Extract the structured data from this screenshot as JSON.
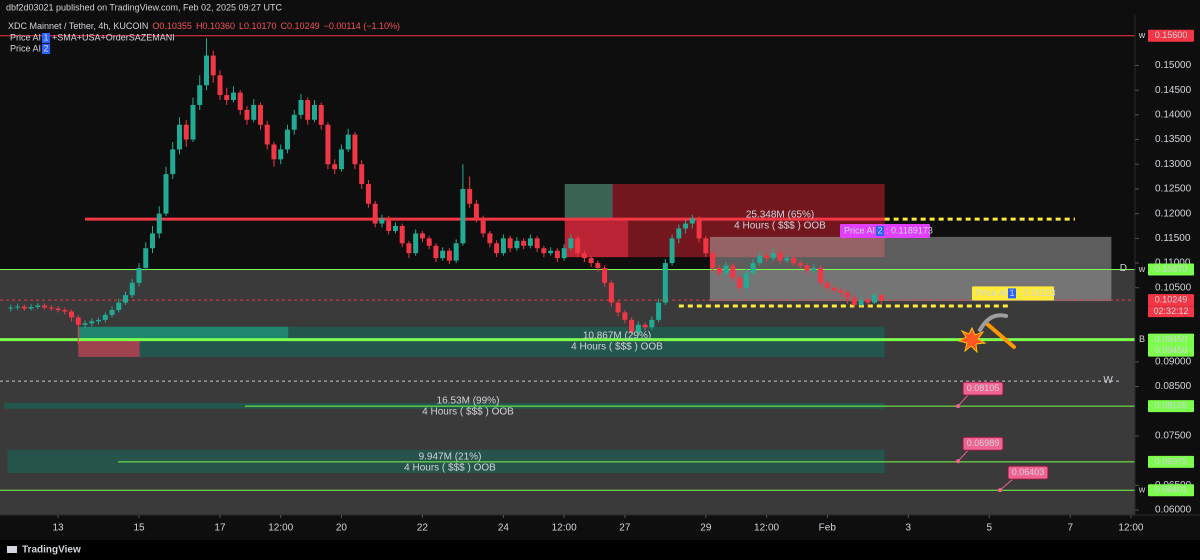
{
  "header": {
    "publisher": "dbf2d03021 published on TradingView.com, Feb 02, 2025 09:27 UTC",
    "symbol": "XDC Mainnet / Tether, 4h, KUCOIN",
    "quote": [
      "O0.10355",
      "H0.10360",
      "L0.10170",
      "C0.10249",
      "−0.00114 (−1.10%)"
    ],
    "indicators": [
      {
        "name": "Price AI",
        "badge": "1",
        "text": "+SMA+USA+OrderSAZEMANI"
      },
      {
        "name": "Price AI",
        "badge": "2"
      }
    ]
  },
  "footer": "TradingView",
  "chart_data": {
    "type": "candlestick",
    "up_color": "#22ab94",
    "down_color": "#f23645",
    "xlim": [
      -8.6,
      159.6
    ],
    "ylim": [
      0.059,
      0.1592
    ],
    "xticks": [
      {
        "value": 0,
        "label": "13"
      },
      {
        "value": 12,
        "label": "15"
      },
      {
        "value": 24,
        "label": "17"
      },
      {
        "value": 33,
        "label": "12:00"
      },
      {
        "value": 42,
        "label": "20"
      },
      {
        "value": 54,
        "label": "22"
      },
      {
        "value": 66,
        "label": "24"
      },
      {
        "value": 75,
        "label": "12:00"
      },
      {
        "value": 84,
        "label": "27"
      },
      {
        "value": 96,
        "label": "29"
      },
      {
        "value": 105,
        "label": "12:00"
      },
      {
        "value": 114,
        "label": "Feb"
      },
      {
        "value": 126,
        "label": "3"
      },
      {
        "value": 138,
        "label": "5"
      },
      {
        "value": 150,
        "label": "7"
      },
      {
        "value": 159,
        "label": "12:00"
      }
    ],
    "yticks": [
      {
        "value": 0.15,
        "label": "0.15000"
      },
      {
        "value": 0.145,
        "label": "0.14500"
      },
      {
        "value": 0.14,
        "label": "0.14000"
      },
      {
        "value": 0.135,
        "label": "0.13500"
      },
      {
        "value": 0.13,
        "label": "0.13000"
      },
      {
        "value": 0.125,
        "label": "0.12500"
      },
      {
        "value": 0.12,
        "label": "0.12000"
      },
      {
        "value": 0.115,
        "label": "0.11500"
      },
      {
        "value": 0.11,
        "label": "0.11000"
      },
      {
        "value": 0.105,
        "label": "0.10500"
      },
      {
        "value": 0.09,
        "label": "0.09000"
      },
      {
        "value": 0.085,
        "label": "0.08500"
      },
      {
        "value": 0.075,
        "label": "0.07500"
      },
      {
        "value": 0.065,
        "label": "0.06500"
      },
      {
        "value": 0.06,
        "label": "0.06000"
      }
    ],
    "x": [
      -7,
      -6,
      -5,
      -4,
      -3,
      -2,
      -1,
      0,
      1,
      2,
      3,
      4,
      5,
      6,
      7,
      8,
      9,
      10,
      11,
      12,
      13,
      14,
      15,
      16,
      17,
      18,
      19,
      20,
      21,
      22,
      23,
      24,
      25,
      26,
      27,
      28,
      29,
      30,
      31,
      32,
      33,
      34,
      35,
      36,
      37,
      38,
      39,
      40,
      41,
      42,
      43,
      44,
      45,
      46,
      47,
      48,
      49,
      50,
      51,
      52,
      53,
      54,
      55,
      56,
      57,
      58,
      59,
      60,
      61,
      62,
      63,
      64,
      65,
      66,
      67,
      68,
      69,
      70,
      71,
      72,
      73,
      74,
      75,
      76,
      77,
      78,
      79,
      80,
      81,
      82,
      83,
      84,
      85,
      86,
      87,
      88,
      89,
      90,
      91,
      92,
      93,
      94,
      95,
      96,
      97,
      98,
      99,
      100,
      101,
      102,
      103,
      104,
      105,
      106,
      107,
      108,
      109,
      110,
      111,
      112,
      113,
      114,
      115,
      116,
      117,
      118,
      119,
      120,
      121,
      122
    ],
    "candles": [
      [
        0.1008,
        0.1016,
        0.1002,
        0.101
      ],
      [
        0.101,
        0.1018,
        0.1005,
        0.1012
      ],
      [
        0.1012,
        0.1016,
        0.1003,
        0.1008
      ],
      [
        0.1008,
        0.1017,
        0.1004,
        0.1011
      ],
      [
        0.1011,
        0.1019,
        0.1007,
        0.1014
      ],
      [
        0.1014,
        0.1018,
        0.1006,
        0.101
      ],
      [
        0.101,
        0.1015,
        0.1003,
        0.1008
      ],
      [
        0.1008,
        0.1013,
        0.1,
        0.1005
      ],
      [
        0.1005,
        0.101,
        0.0996,
        0.1002
      ],
      [
        0.1002,
        0.1006,
        0.0982,
        0.099
      ],
      [
        0.099,
        0.0995,
        0.0935,
        0.0975
      ],
      [
        0.0975,
        0.0984,
        0.0968,
        0.0978
      ],
      [
        0.0978,
        0.0988,
        0.0972,
        0.0982
      ],
      [
        0.0982,
        0.099,
        0.0976,
        0.0985
      ],
      [
        0.0985,
        0.1,
        0.098,
        0.0995
      ],
      [
        0.0995,
        0.1012,
        0.099,
        0.1005
      ],
      [
        0.1005,
        0.1028,
        0.1,
        0.102
      ],
      [
        0.102,
        0.1042,
        0.1015,
        0.1035
      ],
      [
        0.1035,
        0.1068,
        0.103,
        0.106
      ],
      [
        0.106,
        0.11,
        0.1052,
        0.109
      ],
      [
        0.109,
        0.1142,
        0.1085,
        0.113
      ],
      [
        0.113,
        0.1175,
        0.112,
        0.116
      ],
      [
        0.116,
        0.1215,
        0.115,
        0.12
      ],
      [
        0.12,
        0.1295,
        0.1195,
        0.128
      ],
      [
        0.128,
        0.1345,
        0.127,
        0.133
      ],
      [
        0.133,
        0.1395,
        0.132,
        0.138
      ],
      [
        0.138,
        0.139,
        0.1335,
        0.135
      ],
      [
        0.135,
        0.1435,
        0.1345,
        0.142
      ],
      [
        0.142,
        0.148,
        0.141,
        0.146
      ],
      [
        0.146,
        0.1555,
        0.145,
        0.152
      ],
      [
        0.152,
        0.153,
        0.1465,
        0.148
      ],
      [
        0.148,
        0.149,
        0.143,
        0.144
      ],
      [
        0.144,
        0.1455,
        0.142,
        0.143
      ],
      [
        0.143,
        0.1458,
        0.1425,
        0.1445
      ],
      [
        0.1445,
        0.145,
        0.14,
        0.141
      ],
      [
        0.141,
        0.1418,
        0.138,
        0.139
      ],
      [
        0.139,
        0.1432,
        0.1385,
        0.142
      ],
      [
        0.142,
        0.1425,
        0.137,
        0.138
      ],
      [
        0.138,
        0.1388,
        0.133,
        0.134
      ],
      [
        0.134,
        0.1345,
        0.1295,
        0.131
      ],
      [
        0.131,
        0.134,
        0.13,
        0.133
      ],
      [
        0.133,
        0.138,
        0.1322,
        0.137
      ],
      [
        0.137,
        0.141,
        0.136,
        0.14
      ],
      [
        0.14,
        0.1442,
        0.1392,
        0.143
      ],
      [
        0.143,
        0.1435,
        0.138,
        0.139
      ],
      [
        0.139,
        0.143,
        0.1385,
        0.142
      ],
      [
        0.142,
        0.1425,
        0.137,
        0.138
      ],
      [
        0.138,
        0.1385,
        0.129,
        0.13
      ],
      [
        0.13,
        0.131,
        0.128,
        0.129
      ],
      [
        0.129,
        0.134,
        0.1285,
        0.133
      ],
      [
        0.133,
        0.1372,
        0.1325,
        0.136
      ],
      [
        0.136,
        0.1365,
        0.129,
        0.13
      ],
      [
        0.13,
        0.1308,
        0.125,
        0.126
      ],
      [
        0.126,
        0.1268,
        0.1212,
        0.122
      ],
      [
        0.122,
        0.1226,
        0.1172,
        0.118
      ],
      [
        0.118,
        0.1198,
        0.1172,
        0.119
      ],
      [
        0.119,
        0.1195,
        0.1158,
        0.1165
      ],
      [
        0.1165,
        0.1182,
        0.116,
        0.1175
      ],
      [
        0.1175,
        0.118,
        0.1132,
        0.114
      ],
      [
        0.114,
        0.1145,
        0.111,
        0.112
      ],
      [
        0.112,
        0.1168,
        0.1115,
        0.116
      ],
      [
        0.116,
        0.1165,
        0.1142,
        0.115
      ],
      [
        0.115,
        0.1155,
        0.1128,
        0.1135
      ],
      [
        0.1135,
        0.114,
        0.1102,
        0.111
      ],
      [
        0.111,
        0.1132,
        0.1105,
        0.1125
      ],
      [
        0.1125,
        0.113,
        0.1098,
        0.1105
      ],
      [
        0.1105,
        0.1148,
        0.11,
        0.114
      ],
      [
        0.114,
        0.13,
        0.1135,
        0.125
      ],
      [
        0.125,
        0.1275,
        0.1212,
        0.122
      ],
      [
        0.122,
        0.1228,
        0.1182,
        0.119
      ],
      [
        0.119,
        0.1196,
        0.1152,
        0.116
      ],
      [
        0.116,
        0.1165,
        0.1132,
        0.114
      ],
      [
        0.114,
        0.1146,
        0.1112,
        0.112
      ],
      [
        0.112,
        0.1158,
        0.1115,
        0.115
      ],
      [
        0.115,
        0.1155,
        0.1122,
        0.113
      ],
      [
        0.113,
        0.1152,
        0.1125,
        0.1145
      ],
      [
        0.1145,
        0.115,
        0.1128,
        0.1135
      ],
      [
        0.1135,
        0.1158,
        0.113,
        0.115
      ],
      [
        0.115,
        0.1155,
        0.1122,
        0.113
      ],
      [
        0.113,
        0.1135,
        0.1112,
        0.112
      ],
      [
        0.112,
        0.1132,
        0.1115,
        0.1125
      ],
      [
        0.1125,
        0.113,
        0.1102,
        0.111
      ],
      [
        0.111,
        0.1138,
        0.1105,
        0.113
      ],
      [
        0.113,
        0.1158,
        0.1125,
        0.115
      ],
      [
        0.115,
        0.1155,
        0.1112,
        0.112
      ],
      [
        0.112,
        0.1126,
        0.1102,
        0.111
      ],
      [
        0.111,
        0.1115,
        0.1092,
        0.11
      ],
      [
        0.11,
        0.1105,
        0.1082,
        0.109
      ],
      [
        0.109,
        0.1095,
        0.1052,
        0.106
      ],
      [
        0.106,
        0.1065,
        0.1012,
        0.102
      ],
      [
        0.102,
        0.1025,
        0.0992,
        0.1
      ],
      [
        0.1,
        0.1005,
        0.0978,
        0.0985
      ],
      [
        0.0985,
        0.099,
        0.0955,
        0.096
      ],
      [
        0.096,
        0.0982,
        0.0955,
        0.0975
      ],
      [
        0.0975,
        0.098,
        0.0962,
        0.097
      ],
      [
        0.097,
        0.0992,
        0.0965,
        0.0985
      ],
      [
        0.0985,
        0.1028,
        0.098,
        0.102
      ],
      [
        0.102,
        0.1108,
        0.1015,
        0.11
      ],
      [
        0.11,
        0.1158,
        0.1095,
        0.115
      ],
      [
        0.115,
        0.1178,
        0.114,
        0.117
      ],
      [
        0.117,
        0.1188,
        0.116,
        0.118
      ],
      [
        0.118,
        0.1198,
        0.117,
        0.119
      ],
      [
        0.119,
        0.1195,
        0.1142,
        0.115
      ],
      [
        0.115,
        0.1155,
        0.1112,
        0.112
      ],
      [
        0.112,
        0.1126,
        0.1082,
        0.109
      ],
      [
        0.109,
        0.1096,
        0.1072,
        0.108
      ],
      [
        0.108,
        0.1102,
        0.1075,
        0.1095
      ],
      [
        0.1095,
        0.11,
        0.1062,
        0.107
      ],
      [
        0.107,
        0.1076,
        0.1042,
        0.105
      ],
      [
        0.105,
        0.1088,
        0.1045,
        0.108
      ],
      [
        0.108,
        0.1108,
        0.1075,
        0.11
      ],
      [
        0.11,
        0.1125,
        0.1095,
        0.1115
      ],
      [
        0.1115,
        0.112,
        0.1102,
        0.111
      ],
      [
        0.111,
        0.113,
        0.1105,
        0.112
      ],
      [
        0.112,
        0.1125,
        0.1098,
        0.1105
      ],
      [
        0.1105,
        0.1118,
        0.11,
        0.111
      ],
      [
        0.111,
        0.1115,
        0.1094,
        0.11
      ],
      [
        0.11,
        0.1105,
        0.1088,
        0.1095
      ],
      [
        0.1095,
        0.11,
        0.1078,
        0.1085
      ],
      [
        0.1085,
        0.1098,
        0.108,
        0.109
      ],
      [
        0.109,
        0.1095,
        0.1052,
        0.106
      ],
      [
        0.106,
        0.1066,
        0.1042,
        0.105
      ],
      [
        0.105,
        0.1056,
        0.1038,
        0.1045
      ],
      [
        0.1045,
        0.105,
        0.1032,
        0.104
      ],
      [
        0.104,
        0.1046,
        0.1018,
        0.103
      ],
      [
        0.103,
        0.1036,
        0.101,
        0.1015
      ],
      [
        0.1015,
        0.1032,
        0.1012,
        0.1025
      ],
      [
        0.1025,
        0.103,
        0.1012,
        0.102
      ],
      [
        0.102,
        0.104,
        0.1017,
        0.1035
      ],
      [
        0.10355,
        0.1036,
        0.1017,
        0.10249
      ]
    ],
    "zones": [
      {
        "x0": -8.6,
        "x1": 159.6,
        "y0": 0.059,
        "y1": 0.1087,
        "color": "#3a3a3a"
      },
      {
        "x0": 75.1,
        "x1": 122.5,
        "y0": 0.1112,
        "y1": 0.126,
        "color": "rgba(150,25,35,0.75)"
      },
      {
        "x0": 75.1,
        "x1": 82.2,
        "y0": 0.1191,
        "y1": 0.126,
        "color": "rgba(45,120,100,0.8)"
      },
      {
        "x0": 75.1,
        "x1": 84.5,
        "y0": 0.1112,
        "y1": 0.1191,
        "color": "rgba(210,40,60,0.75)"
      },
      {
        "x0": 96.6,
        "x1": 156.1,
        "y0": 0.1023,
        "y1": 0.1153,
        "color": "rgba(190,190,190,0.45)"
      },
      {
        "x0": 3,
        "x1": 122.5,
        "y0": 0.091,
        "y1": 0.0971,
        "color": "rgba(25,100,85,0.7)"
      },
      {
        "x0": 3,
        "x1": 34.1,
        "y0": 0.0944,
        "y1": 0.0971,
        "color": "rgba(30,150,120,0.75)"
      },
      {
        "x0": 3,
        "x1": 12.1,
        "y0": 0.091,
        "y1": 0.0944,
        "color": "rgba(200,60,80,0.75)"
      },
      {
        "x0": -8,
        "x1": 122.5,
        "y0": 0.0805,
        "y1": 0.0817,
        "color": "rgba(25,100,85,0.7)"
      },
      {
        "x0": -7.5,
        "x1": 122.5,
        "y0": 0.0675,
        "y1": 0.0722,
        "color": "rgba(25,100,85,0.6)"
      }
    ],
    "levels": [
      {
        "value": 0.156,
        "x0": -8.6,
        "x1": 159.6,
        "color": "#f23645",
        "width": 1
      },
      {
        "value": 0.1189,
        "x0": 4,
        "x1": 122.5,
        "color": "#f23645",
        "width": 3
      },
      {
        "value": 0.1189,
        "x0": 122.5,
        "x1": 150.7,
        "color": "#ffeb3b",
        "width": 3,
        "dash": true
      },
      {
        "value": 0.1087,
        "x0": -8.6,
        "x1": 159.6,
        "color": "#7cfc4c",
        "width": 1,
        "tag": "D"
      },
      {
        "value": 0.10249,
        "x0": -8.6,
        "x1": 159.6,
        "color": "#f23645",
        "width": 1,
        "dash": true
      },
      {
        "value": 0.1013,
        "x0": 92,
        "x1": 141,
        "color": "#ffeb3b",
        "width": 3,
        "dash": true
      },
      {
        "value": 0.0945,
        "x0": -8.6,
        "x1": 159.6,
        "color": "#7cfc4c",
        "width": 3
      },
      {
        "value": 0.0861,
        "x0": -8.6,
        "x1": 157.5,
        "color": "#cccccc",
        "width": 1,
        "dash": true,
        "tag": "W"
      },
      {
        "value": 0.08105,
        "x0": 27.7,
        "x1": 159.6,
        "color": "#7cfc4c",
        "width": 1
      },
      {
        "value": 0.06975,
        "x0": 8.9,
        "x1": 159.6,
        "color": "#7cfc4c",
        "width": 1
      },
      {
        "value": 0.06401,
        "x0": -8.6,
        "x1": 159.6,
        "color": "#7cfc4c",
        "width": 1
      }
    ],
    "axis_labels": [
      {
        "value": 0.156,
        "label": "0.15600",
        "color": "#f23645",
        "text_color": "#ffffff",
        "tag": "w"
      },
      {
        "value": 0.1087,
        "label": "0.10870",
        "color": "#7cfc4c",
        "text_color": "#000000",
        "tag": "w"
      },
      {
        "value": 0.10249,
        "label": "0.10249",
        "color": "#f23645",
        "text_color": "#ffffff",
        "countdown": "02:32:12"
      },
      {
        "value": 0.0945,
        "label": "0.09450",
        "color": "#7cfc4c",
        "text_color": "#000000",
        "tag": "B"
      },
      {
        "value": 0.0945,
        "label": "0.09450",
        "color": "#7cfc4c",
        "text_color": "#000000"
      },
      {
        "value": 0.08105,
        "label": "0.08105",
        "color": "#7cfc4c",
        "text_color": "#000000"
      },
      {
        "value": 0.06975,
        "label": "0.06975",
        "color": "#7cfc4c",
        "text_color": "#000000"
      },
      {
        "value": 0.06401,
        "label": "0.06401",
        "color": "#7cfc4c",
        "text_color": "#000000",
        "tag": "w"
      }
    ],
    "annotations": [
      [
        "25.348M (65%)",
        "4 Hours ( $$$ ) OOB"
      ],
      [
        "10.867M (29%)",
        "4 Hours ( $$$ ) OOB"
      ],
      [
        "16.53M (99%)",
        "4 Hours ( $$$ ) OOB"
      ],
      [
        "9.947M (21%)",
        "4 Hours ( $$$ ) OOB"
      ]
    ],
    "callouts": [
      {
        "name": "Price AI",
        "badge": "2",
        "sep": ":",
        "value": 0.1189173,
        "color": "#e040fb",
        "text_color": "#ffffff"
      },
      {
        "name": "Price AI",
        "badge": "1",
        "sep": ":",
        "value": 0.10123,
        "color": "#ffeb3b",
        "text_color": "#000000"
      }
    ],
    "pins": [
      {
        "value": 0.08105,
        "color": "#f06292"
      },
      {
        "value": 0.06989,
        "color": "#f06292"
      },
      {
        "value": 0.06403,
        "color": "#f06292"
      }
    ]
  }
}
